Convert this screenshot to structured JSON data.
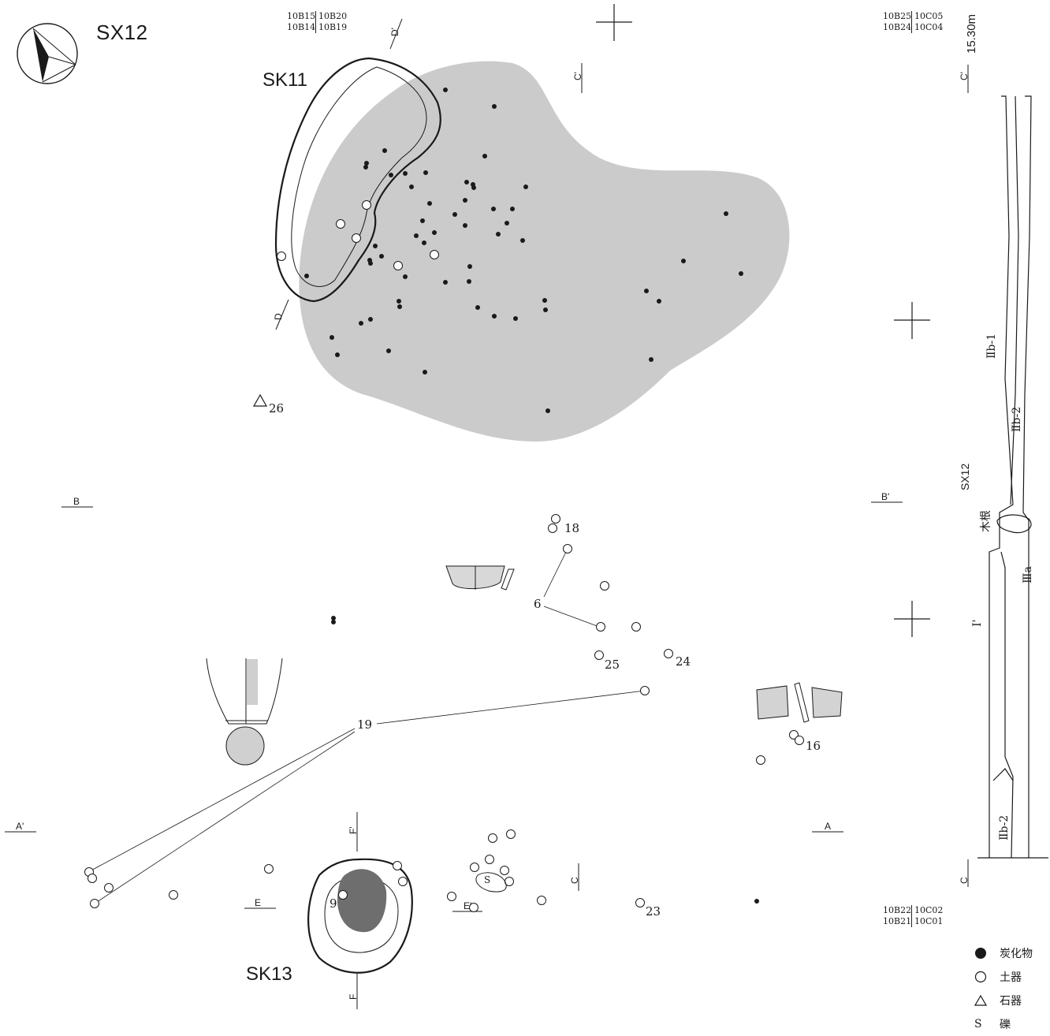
{
  "title": "SX12",
  "features": {
    "sk11": "SK11",
    "sk13": "SK13"
  },
  "grid_labels": {
    "top_left": {
      "row1": [
        "10B15",
        "10B20"
      ],
      "row2": [
        "10B14",
        "10B19"
      ]
    },
    "top_right": {
      "row1": [
        "10B25",
        "10C05"
      ],
      "row2": [
        "10B24",
        "10C04"
      ]
    },
    "bottom_right": {
      "row1": [
        "10B22",
        "10C02"
      ],
      "row2": [
        "10B21",
        "10C01"
      ]
    }
  },
  "elevation": "15.30m",
  "section_labels": {
    "a": "A",
    "a_prime": "A'",
    "b": "B",
    "b_prime": "B'",
    "c": "C",
    "c_prime": "C'",
    "d": "D",
    "d_prime": "D'",
    "e": "E",
    "e_prime": "E'",
    "f": "F",
    "f_prime": "F'"
  },
  "artifact_numbers": [
    "18",
    "6",
    "25",
    "24",
    "19",
    "16",
    "9",
    "23",
    "26"
  ],
  "stone_marker": "S",
  "profile_labels": {
    "layer_iib1": "Ⅱb-1",
    "layer_iib2_upper": "Ⅱb-2",
    "layer_iib2_lower": "Ⅱb-2",
    "layer_iiia": "Ⅲa",
    "layer_i": "Ⅰ'",
    "feature": "SX12",
    "root": "木根"
  },
  "legend": [
    {
      "symbol": "filled-circle",
      "label": "炭化物"
    },
    {
      "symbol": "open-circle",
      "label": "土器"
    },
    {
      "symbol": "triangle",
      "label": "石器"
    },
    {
      "symbol": "S",
      "label": "礫"
    }
  ],
  "colors": {
    "charcoal_area": "#cbcbcb",
    "pit_fill": "#6e6e6e",
    "line": "#1a1a1a"
  }
}
